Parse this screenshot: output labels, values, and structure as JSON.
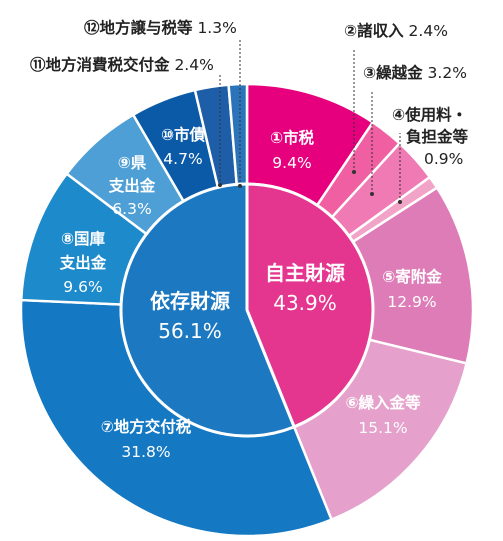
{
  "chart_data": {
    "type": "pie",
    "inner_ring": [
      {
        "label": "自主財源",
        "value": 43.9,
        "display": "43.9%",
        "color": "#e4358f"
      },
      {
        "label": "依存財源",
        "value": 56.1,
        "display": "56.1%",
        "color": "#1c78c0"
      }
    ],
    "outer_ring": [
      {
        "label": "①市税",
        "value": 9.4,
        "display": "9.4%",
        "color": "#e6007e"
      },
      {
        "label": "②諸収入",
        "value": 2.4,
        "display": "2.4%",
        "color": "#ef5fa2"
      },
      {
        "label": "③繰越金",
        "value": 3.2,
        "display": "3.2%",
        "color": "#f07ab4"
      },
      {
        "label": "④使用料・負担金等",
        "label_lines": [
          "④使用料・",
          "負担金等"
        ],
        "value": 0.9,
        "display": "0.9%",
        "color": "#f2a3c8"
      },
      {
        "label": "⑤寄附金",
        "value": 12.9,
        "display": "12.9%",
        "color": "#de7cb7"
      },
      {
        "label": "⑥繰入金等",
        "value": 15.1,
        "display": "15.1%",
        "color": "#e5a1cb"
      },
      {
        "label": "⑦地方交付税",
        "value": 31.8,
        "display": "31.8%",
        "color": "#1478c3"
      },
      {
        "label": "⑧国庫支出金",
        "label_lines": [
          "⑧国庫",
          "支出金"
        ],
        "value": 9.6,
        "display": "9.6%",
        "color": "#1c8acb"
      },
      {
        "label": "⑨県支出金",
        "label_lines": [
          "⑨県",
          "支出金"
        ],
        "value": 6.3,
        "display": "6.3%",
        "color": "#4d9fd5"
      },
      {
        "label": "⑩市債",
        "value": 4.7,
        "display": "4.7%",
        "color": "#0a5aa8"
      },
      {
        "label": "⑪地方消費税交付金",
        "value": 2.4,
        "display": "2.4%",
        "color": "#1e5ea8"
      },
      {
        "label": "⑫地方譲与税等",
        "value": 1.3,
        "display": "1.3%",
        "color": "#2c74ba"
      }
    ]
  }
}
